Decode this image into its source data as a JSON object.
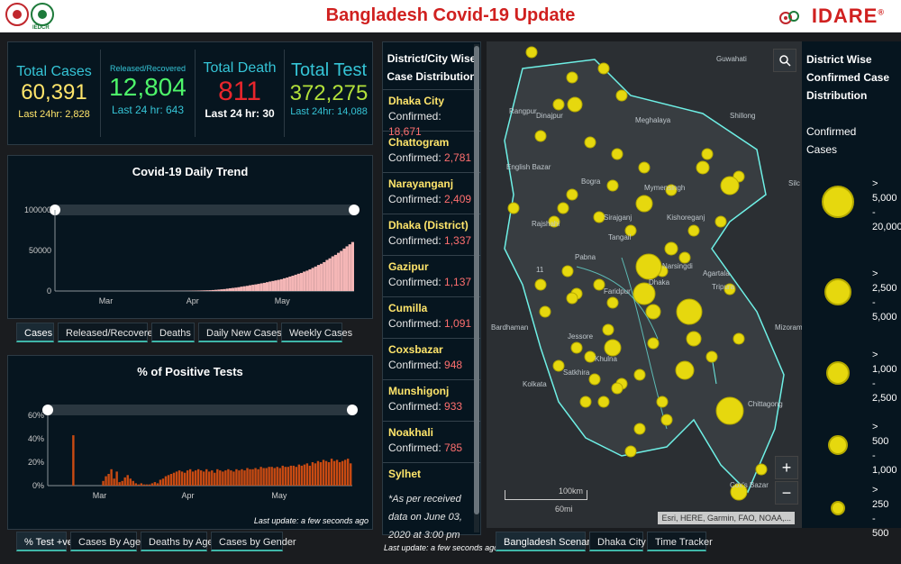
{
  "header": {
    "title": "Bangladesh Covid-19 Update",
    "left_logo_caption": "IEDCR",
    "right_logo_text": "IDARE",
    "right_logo_mark": "®"
  },
  "stats": {
    "total_cases": {
      "label": "Total Cases",
      "value": "60,391",
      "sub": "Last 24hr: 2,828",
      "color": "#ffe56b"
    },
    "recovered": {
      "label": "Released/Recovered",
      "value": "12,804",
      "sub": "Last 24 hr: 643",
      "color": "#4ef56a"
    },
    "deaths": {
      "label": "Total Death",
      "value": "811",
      "sub": "Last 24 hr: 30",
      "color": "#e8262c"
    },
    "tests": {
      "label": "Total Test",
      "value": "372,275",
      "sub": "Last 24hr: 14,088",
      "color": "#b2e03a"
    }
  },
  "trend_chart": {
    "title": "Covid-19 Daily Trend",
    "tabs": [
      "Cases",
      "Released/Recovered",
      "Deaths",
      "Daily New Cases",
      "Weekly Cases"
    ],
    "active_tab": 0
  },
  "positive_chart": {
    "title": "% of Positive Tests",
    "tabs": [
      "% Test +ve",
      "Cases By Age",
      "Deaths by Age",
      "Cases by Gender"
    ],
    "active_tab": 0,
    "last_update": "Last update: a few seconds ago"
  },
  "chart_data": [
    {
      "type": "area",
      "title": "Covid-19 Daily Trend",
      "xlabel": "",
      "ylabel": "",
      "x_ticks": [
        "Mar",
        "Apr",
        "May"
      ],
      "y_ticks": [
        "0",
        "50000",
        "100000"
      ],
      "ylim": [
        0,
        100000
      ],
      "color": "#f4b6b6",
      "series": [
        {
          "values": [
            0,
            0,
            0,
            0,
            0,
            0,
            0,
            0,
            0,
            0,
            0,
            0,
            0,
            0,
            0,
            0,
            0,
            0,
            0,
            0,
            0,
            0,
            0,
            0,
            0,
            0,
            0,
            0,
            0,
            0,
            0,
            0,
            0,
            10,
            20,
            30,
            40,
            50,
            60,
            80,
            100,
            120,
            140,
            160,
            180,
            200,
            250,
            300,
            400,
            500,
            600,
            700,
            800,
            900,
            1000,
            1200,
            1500,
            1800,
            2100,
            2400,
            2900,
            3400,
            3800,
            4200,
            4700,
            5400,
            5900,
            6400,
            7100,
            7700,
            8200,
            8800,
            9500,
            10100,
            10900,
            11700,
            12400,
            13100,
            13800,
            14600,
            15700,
            16600,
            17800,
            18900,
            20100,
            21300,
            22300,
            23900,
            25100,
            26700,
            28500,
            30200,
            32100,
            33600,
            35600,
            38300,
            40300,
            42800,
            44600,
            47100,
            49500,
            52400,
            55100,
            57600,
            60400
          ]
        }
      ]
    },
    {
      "type": "bar",
      "title": "% of Positive Tests",
      "xlabel": "",
      "ylabel": "",
      "x_ticks": [
        "Mar",
        "Apr",
        "May"
      ],
      "y_ticks": [
        "0%",
        "20%",
        "40%",
        "60%"
      ],
      "ylim": [
        0,
        60
      ],
      "color": "#c84a12",
      "series": [
        {
          "values": [
            0,
            0,
            0,
            0,
            0,
            0,
            0,
            0,
            0,
            43,
            0,
            0,
            0,
            0,
            0,
            0,
            0,
            0,
            0,
            0,
            4,
            8,
            10,
            14,
            6,
            12,
            3,
            4,
            7,
            9,
            6,
            4,
            2,
            1,
            2,
            1,
            1,
            1,
            2,
            3,
            2,
            5,
            6,
            8,
            9,
            10,
            11,
            12,
            13,
            12,
            11,
            13,
            14,
            12,
            13,
            14,
            13,
            12,
            14,
            12,
            13,
            11,
            14,
            13,
            12,
            13,
            14,
            13,
            12,
            14,
            13,
            14,
            13,
            15,
            14,
            14,
            15,
            14,
            16,
            15,
            15,
            16,
            16,
            15,
            16,
            15,
            17,
            16,
            16,
            17,
            17,
            16,
            18,
            17,
            18,
            19,
            17,
            20,
            19,
            21,
            20,
            22,
            21,
            20,
            23,
            21,
            22,
            20,
            21,
            22,
            23,
            19
          ]
        }
      ]
    }
  ],
  "district_list": {
    "title": "District/City Wise Case Distribution",
    "confirmed_label": "Confirmed:",
    "items": [
      {
        "name": "Dhaka City",
        "value": "18,671"
      },
      {
        "name": "Chattogram",
        "value": "2,781"
      },
      {
        "name": "Narayanganj",
        "value": "2,409"
      },
      {
        "name": "Dhaka (District)",
        "value": "1,337"
      },
      {
        "name": "Gazipur",
        "value": "1,137"
      },
      {
        "name": "Cumilla",
        "value": "1,091"
      },
      {
        "name": "Coxsbazar",
        "value": "948"
      },
      {
        "name": "Munshigonj",
        "value": "933"
      },
      {
        "name": "Noakhali",
        "value": "785"
      },
      {
        "name": "Sylhet",
        "value": ""
      }
    ],
    "note": "*As per received data on June 03, 2020 at 3:00 pm",
    "last_update": "Last update: a few seconds ago"
  },
  "map": {
    "labels": [
      "Guwahati",
      "Rangpur",
      "Dinajpur",
      "Meghalaya",
      "Shillong",
      "English Bazar",
      "Bogra",
      "Mymensingh",
      "Rajshahi",
      "Sirajganj",
      "Kishoreganj",
      "Tangail",
      "Pabna",
      "Narsingdi",
      "Agartala",
      "Tripura",
      "Bardhaman",
      "Jessore",
      "Dhaka",
      "Faridpur",
      "Khulna",
      "Satkhira",
      "Kolkata",
      "Chittagong",
      "Mizoram",
      "Cox's Bazar",
      "11",
      "Silc"
    ],
    "scale_km": "100km",
    "scale_mi": "60mi",
    "attribution": "Esri, HERE, Garmin, FAO, NOAA,...",
    "zoom_in": "+",
    "zoom_out": "−",
    "search_icon": "search-icon",
    "tabs": [
      "Bangladesh Scenario",
      "Dhaka City",
      "Time Tracker"
    ],
    "active_tab": 0
  },
  "legend": {
    "title": "District Wise Confirmed Case Distribution",
    "subtitle": "Confirmed Cases",
    "items": [
      {
        "label": "> 5,000 - 20,000",
        "size": 36
      },
      {
        "label": "> 2,500 - 5,000",
        "size": 30
      },
      {
        "label": "> 1,000 - 2,500",
        "size": 26
      },
      {
        "label": "> 500 - 1,000",
        "size": 22
      },
      {
        "label": "> 250 - 500",
        "size": 16
      }
    ],
    "dot_color": "#e6d80e"
  }
}
